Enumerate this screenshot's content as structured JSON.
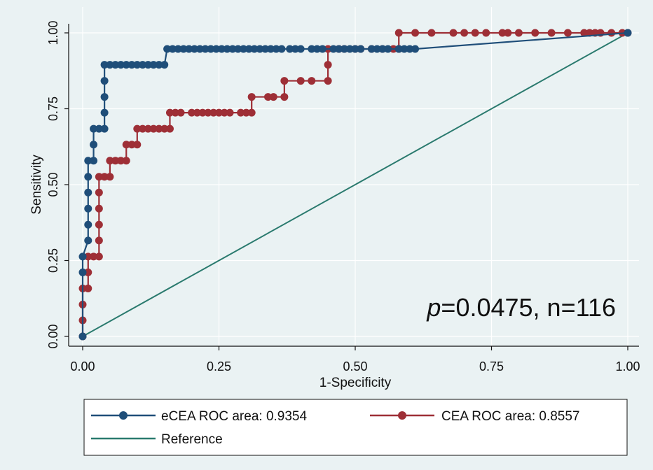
{
  "chart_data": {
    "type": "line",
    "xlabel": "1-Specificity",
    "ylabel": "Sensitivity",
    "xlim": [
      0,
      1
    ],
    "ylim": [
      0,
      1
    ],
    "x_ticks": [
      "0.00",
      "0.25",
      "0.50",
      "0.75",
      "1.00"
    ],
    "y_ticks": [
      "0.00",
      "0.25",
      "0.50",
      "0.75",
      "1.00"
    ],
    "grid": true,
    "legend_position": "bottom",
    "annotation": {
      "italic": "p",
      "rest": "=0.0475, n=116"
    },
    "colors": {
      "ecea": "#1f4e79",
      "cea": "#9e2f36",
      "reference": "#2a7a6e",
      "panel_bg": "#eaf2f3",
      "grid": "#ffffff"
    },
    "series": [
      {
        "name": "eCEA ROC area: 0.9354",
        "key": "ecea",
        "points": [
          [
            0,
            0
          ],
          [
            0,
            0.211
          ],
          [
            0,
            0.263
          ],
          [
            0.01,
            0.316
          ],
          [
            0.01,
            0.368
          ],
          [
            0.01,
            0.421
          ],
          [
            0.01,
            0.474
          ],
          [
            0.01,
            0.526
          ],
          [
            0.01,
            0.579
          ],
          [
            0.02,
            0.579
          ],
          [
            0.02,
            0.632
          ],
          [
            0.02,
            0.684
          ],
          [
            0.03,
            0.684
          ],
          [
            0.04,
            0.684
          ],
          [
            0.04,
            0.737
          ],
          [
            0.04,
            0.789
          ],
          [
            0.04,
            0.842
          ],
          [
            0.04,
            0.895
          ],
          [
            0.05,
            0.895
          ],
          [
            0.06,
            0.895
          ],
          [
            0.07,
            0.895
          ],
          [
            0.08,
            0.895
          ],
          [
            0.09,
            0.895
          ],
          [
            0.1,
            0.895
          ],
          [
            0.11,
            0.895
          ],
          [
            0.12,
            0.895
          ],
          [
            0.13,
            0.895
          ],
          [
            0.14,
            0.895
          ],
          [
            0.15,
            0.895
          ],
          [
            0.155,
            0.947
          ],
          [
            0.165,
            0.947
          ],
          [
            0.175,
            0.947
          ],
          [
            0.185,
            0.947
          ],
          [
            0.195,
            0.947
          ],
          [
            0.205,
            0.947
          ],
          [
            0.215,
            0.947
          ],
          [
            0.225,
            0.947
          ],
          [
            0.235,
            0.947
          ],
          [
            0.245,
            0.947
          ],
          [
            0.255,
            0.947
          ],
          [
            0.265,
            0.947
          ],
          [
            0.275,
            0.947
          ],
          [
            0.285,
            0.947
          ],
          [
            0.295,
            0.947
          ],
          [
            0.305,
            0.947
          ],
          [
            0.315,
            0.947
          ],
          [
            0.325,
            0.947
          ],
          [
            0.335,
            0.947
          ],
          [
            0.345,
            0.947
          ],
          [
            0.355,
            0.947
          ],
          [
            0.365,
            0.947
          ],
          [
            0.38,
            0.947
          ],
          [
            0.39,
            0.947
          ],
          [
            0.4,
            0.947
          ],
          [
            0.42,
            0.947
          ],
          [
            0.43,
            0.947
          ],
          [
            0.44,
            0.947
          ],
          [
            0.46,
            0.947
          ],
          [
            0.47,
            0.947
          ],
          [
            0.48,
            0.947
          ],
          [
            0.49,
            0.947
          ],
          [
            0.5,
            0.947
          ],
          [
            0.51,
            0.947
          ],
          [
            0.53,
            0.947
          ],
          [
            0.54,
            0.947
          ],
          [
            0.55,
            0.947
          ],
          [
            0.56,
            0.947
          ],
          [
            0.58,
            0.947
          ],
          [
            0.59,
            0.947
          ],
          [
            0.6,
            0.947
          ],
          [
            0.61,
            0.947
          ],
          [
            1.0,
            1.0
          ]
        ]
      },
      {
        "name": "CEA ROC area: 0.8557",
        "key": "cea",
        "points": [
          [
            0,
            0
          ],
          [
            0,
            0.053
          ],
          [
            0,
            0.105
          ],
          [
            0,
            0.158
          ],
          [
            0.01,
            0.158
          ],
          [
            0.01,
            0.211
          ],
          [
            0.01,
            0.263
          ],
          [
            0.02,
            0.263
          ],
          [
            0.03,
            0.263
          ],
          [
            0.03,
            0.316
          ],
          [
            0.03,
            0.368
          ],
          [
            0.03,
            0.421
          ],
          [
            0.03,
            0.474
          ],
          [
            0.03,
            0.526
          ],
          [
            0.04,
            0.526
          ],
          [
            0.05,
            0.526
          ],
          [
            0.05,
            0.579
          ],
          [
            0.06,
            0.579
          ],
          [
            0.07,
            0.579
          ],
          [
            0.08,
            0.579
          ],
          [
            0.08,
            0.632
          ],
          [
            0.09,
            0.632
          ],
          [
            0.1,
            0.632
          ],
          [
            0.1,
            0.684
          ],
          [
            0.11,
            0.684
          ],
          [
            0.12,
            0.684
          ],
          [
            0.13,
            0.684
          ],
          [
            0.14,
            0.684
          ],
          [
            0.15,
            0.684
          ],
          [
            0.16,
            0.684
          ],
          [
            0.16,
            0.737
          ],
          [
            0.17,
            0.737
          ],
          [
            0.18,
            0.737
          ],
          [
            0.2,
            0.737
          ],
          [
            0.21,
            0.737
          ],
          [
            0.22,
            0.737
          ],
          [
            0.23,
            0.737
          ],
          [
            0.24,
            0.737
          ],
          [
            0.25,
            0.737
          ],
          [
            0.26,
            0.737
          ],
          [
            0.27,
            0.737
          ],
          [
            0.29,
            0.737
          ],
          [
            0.3,
            0.737
          ],
          [
            0.31,
            0.737
          ],
          [
            0.31,
            0.789
          ],
          [
            0.34,
            0.789
          ],
          [
            0.35,
            0.789
          ],
          [
            0.37,
            0.789
          ],
          [
            0.37,
            0.842
          ],
          [
            0.4,
            0.842
          ],
          [
            0.42,
            0.842
          ],
          [
            0.45,
            0.842
          ],
          [
            0.45,
            0.895
          ],
          [
            0.45,
            0.947
          ],
          [
            0.47,
            0.947
          ],
          [
            0.48,
            0.947
          ],
          [
            0.5,
            0.947
          ],
          [
            0.51,
            0.947
          ],
          [
            0.53,
            0.947
          ],
          [
            0.55,
            0.947
          ],
          [
            0.57,
            0.947
          ],
          [
            0.58,
            0.947
          ],
          [
            0.58,
            1.0
          ],
          [
            0.61,
            1.0
          ],
          [
            0.64,
            1.0
          ],
          [
            0.68,
            1.0
          ],
          [
            0.7,
            1.0
          ],
          [
            0.72,
            1.0
          ],
          [
            0.74,
            1.0
          ],
          [
            0.77,
            1.0
          ],
          [
            0.78,
            1.0
          ],
          [
            0.8,
            1.0
          ],
          [
            0.83,
            1.0
          ],
          [
            0.86,
            1.0
          ],
          [
            0.89,
            1.0
          ],
          [
            0.92,
            1.0
          ],
          [
            0.93,
            1.0
          ],
          [
            0.94,
            1.0
          ],
          [
            0.95,
            1.0
          ],
          [
            0.97,
            1.0
          ],
          [
            0.99,
            1.0
          ],
          [
            1.0,
            1.0
          ]
        ]
      },
      {
        "name": "Reference",
        "key": "reference",
        "points": [
          [
            0,
            0
          ],
          [
            1,
            1
          ]
        ]
      }
    ]
  }
}
